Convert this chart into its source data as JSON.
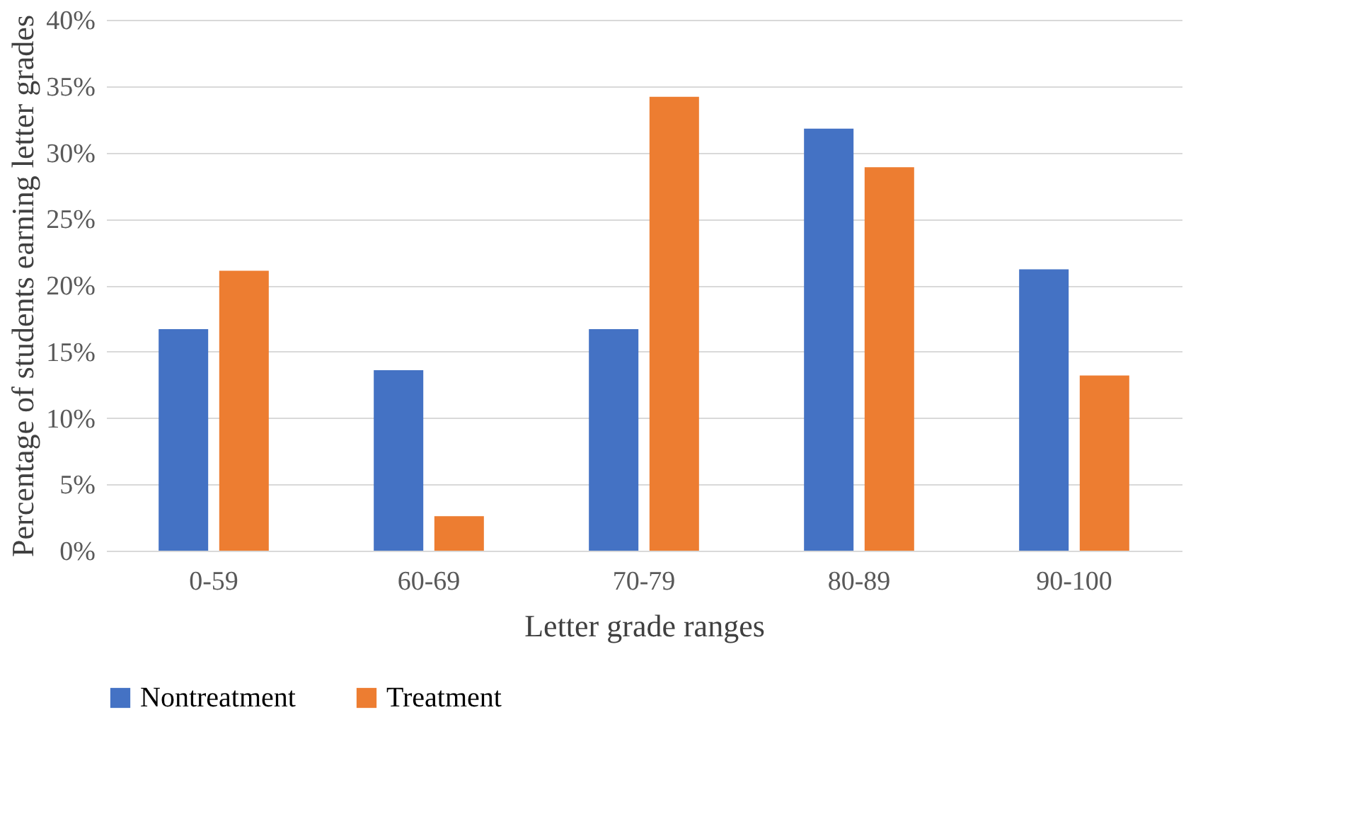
{
  "chart_data": {
    "type": "bar",
    "xlabel": "Letter grade ranges",
    "ylabel": "Percentage of students earning letter grades",
    "categories": [
      "0-59",
      "60-69",
      "70-79",
      "80-89",
      "90-100"
    ],
    "series": [
      {
        "name": "Nontreatment",
        "color": "#4472c4",
        "values": [
          16.7,
          13.6,
          16.7,
          31.8,
          21.2
        ]
      },
      {
        "name": "Treatment",
        "color": "#ed7d31",
        "values": [
          21.1,
          2.6,
          34.2,
          28.9,
          13.2
        ]
      }
    ],
    "ylim": [
      0,
      40
    ],
    "yticks": [
      {
        "value": 0,
        "label": "0%"
      },
      {
        "value": 5,
        "label": "5%"
      },
      {
        "value": 10,
        "label": "10%"
      },
      {
        "value": 15,
        "label": "15%"
      },
      {
        "value": 20,
        "label": "20%"
      },
      {
        "value": 25,
        "label": "25%"
      },
      {
        "value": 30,
        "label": "30%"
      },
      {
        "value": 35,
        "label": "35%"
      },
      {
        "value": 40,
        "label": "40%"
      }
    ],
    "grid": "y",
    "legend": "bottom"
  }
}
